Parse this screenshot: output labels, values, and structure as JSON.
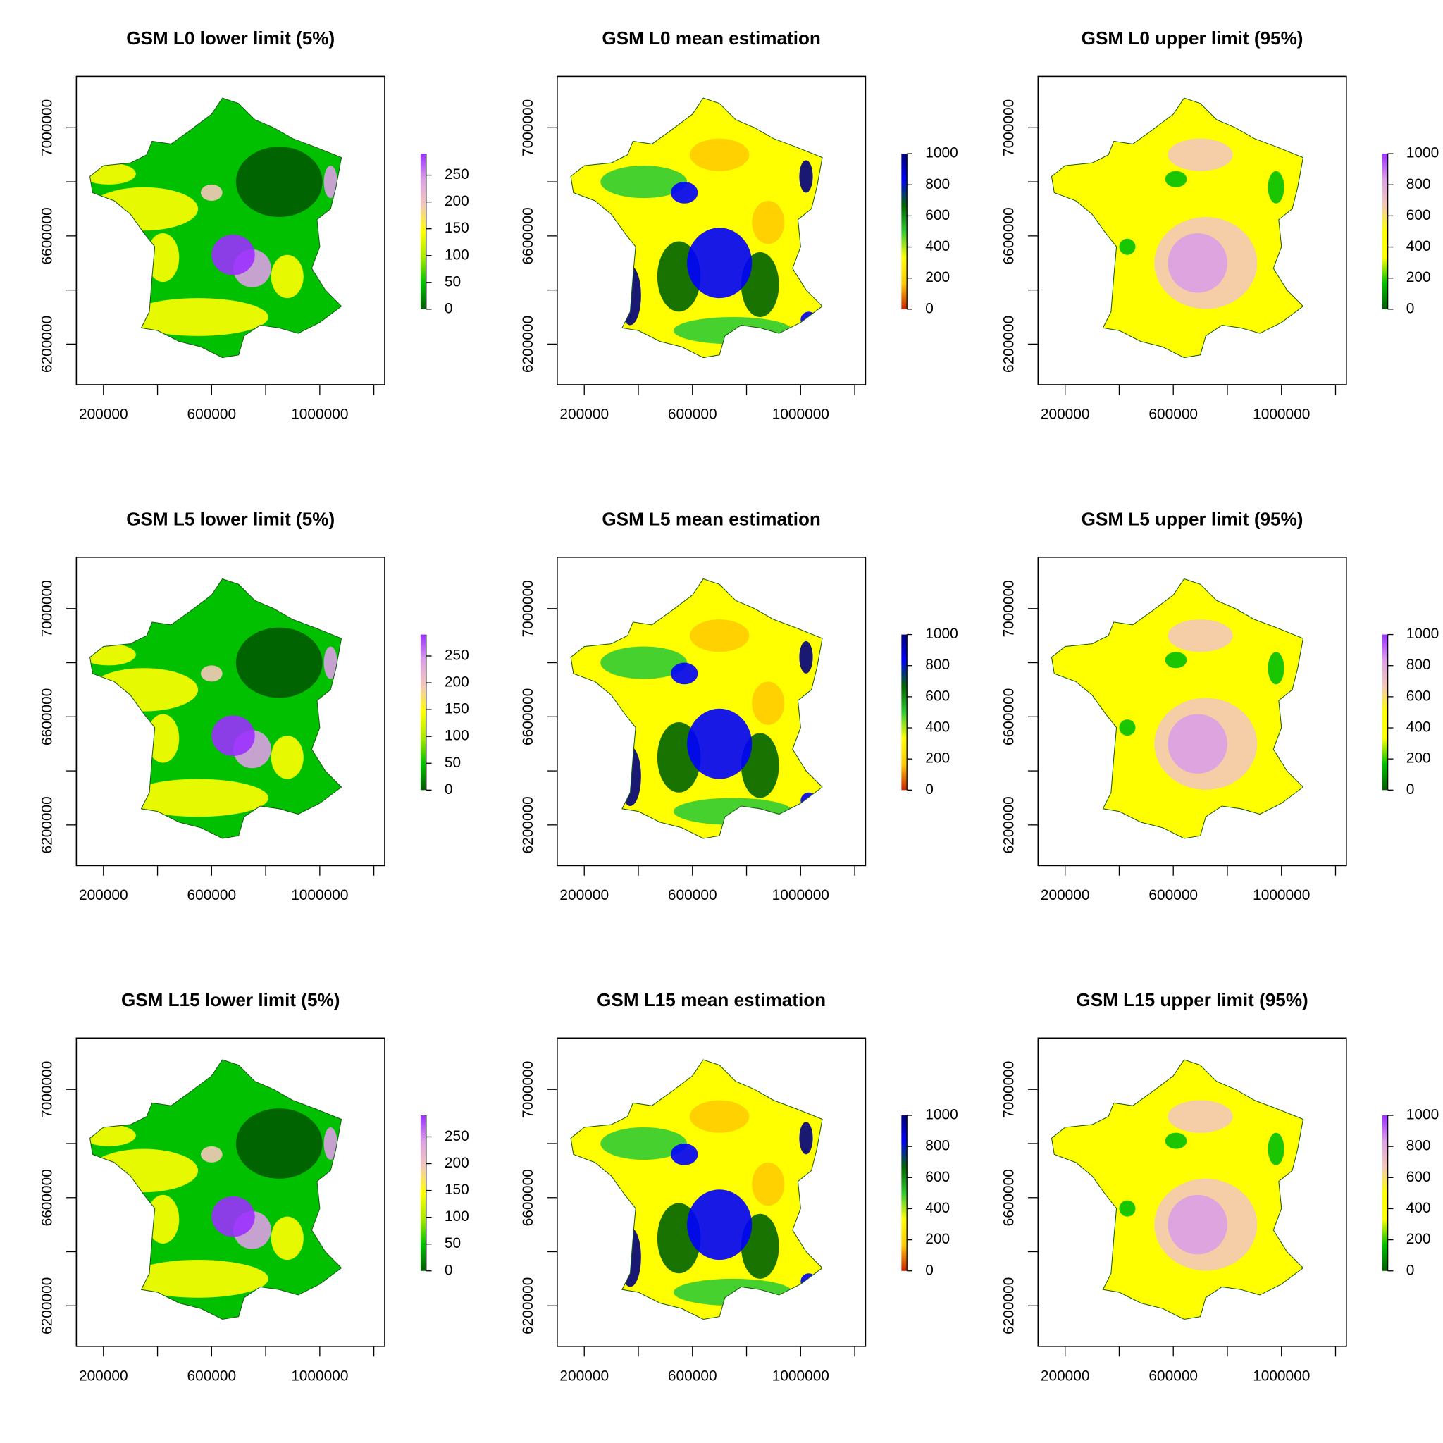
{
  "chart_data": [
    {
      "type": "raster",
      "title": "GSM L0 lower limit (5%)",
      "xlim": [
        100000,
        1240000
      ],
      "ylim": [
        6050000,
        7190000
      ],
      "xticks": [
        200000,
        {
          "value": 400000,
          "label": null
        },
        600000,
        {
          "value": 800000,
          "label": null
        },
        1000000,
        {
          "value": 1200000,
          "label": null
        }
      ],
      "yticks": [
        6200000,
        {
          "value": 6400000,
          "label": null
        },
        6600000,
        {
          "value": 6800000,
          "label": null
        },
        7000000
      ],
      "zlim": [
        0,
        290
      ],
      "zticks": [
        0,
        50,
        100,
        150,
        200,
        250
      ],
      "colors": [
        "#005a00",
        "#00c000",
        "#a8e800",
        "#ffff00",
        "#f4c8b8",
        "#dca0e6",
        "#9b30ff"
      ]
    },
    {
      "type": "raster",
      "title": "GSM L0 mean estimation",
      "xlim": [
        100000,
        1240000
      ],
      "ylim": [
        6050000,
        7190000
      ],
      "xticks": [
        200000,
        {
          "value": 400000,
          "label": null
        },
        600000,
        {
          "value": 800000,
          "label": null
        },
        1000000,
        {
          "value": 1200000,
          "label": null
        }
      ],
      "yticks": [
        6200000,
        {
          "value": 6400000,
          "label": null
        },
        6600000,
        {
          "value": 6800000,
          "label": null
        },
        7000000
      ],
      "zlim": [
        0,
        1000
      ],
      "zticks": [
        0,
        200,
        400,
        600,
        800,
        1000
      ],
      "colors": [
        "#cc2200",
        "#ffcc00",
        "#ffff00",
        "#33cc33",
        "#006400",
        "#0000ff",
        "#000080"
      ]
    },
    {
      "type": "raster",
      "title": "GSM L0 upper limit (95%)",
      "xlim": [
        100000,
        1240000
      ],
      "ylim": [
        6050000,
        7190000
      ],
      "xticks": [
        200000,
        {
          "value": 400000,
          "label": null
        },
        600000,
        {
          "value": 800000,
          "label": null
        },
        1000000,
        {
          "value": 1200000,
          "label": null
        }
      ],
      "yticks": [
        6200000,
        {
          "value": 6400000,
          "label": null
        },
        6600000,
        {
          "value": 6800000,
          "label": null
        },
        7000000
      ],
      "zlim": [
        0,
        1000
      ],
      "zticks": [
        0,
        200,
        400,
        600,
        800,
        1000
      ],
      "colors": [
        "#005a00",
        "#00c000",
        "#ffff00",
        "#ffff00",
        "#f4c8b8",
        "#dca0e6",
        "#9b30ff"
      ]
    },
    {
      "type": "raster",
      "title": "GSM L5 lower limit (5%)",
      "xlim": [
        100000,
        1240000
      ],
      "ylim": [
        6050000,
        7190000
      ],
      "xticks": [
        200000,
        {
          "value": 400000,
          "label": null
        },
        600000,
        {
          "value": 800000,
          "label": null
        },
        1000000,
        {
          "value": 1200000,
          "label": null
        }
      ],
      "yticks": [
        6200000,
        {
          "value": 6400000,
          "label": null
        },
        6600000,
        {
          "value": 6800000,
          "label": null
        },
        7000000
      ],
      "zlim": [
        0,
        290
      ],
      "zticks": [
        0,
        50,
        100,
        150,
        200,
        250
      ],
      "colors": [
        "#005a00",
        "#00c000",
        "#a8e800",
        "#ffff00",
        "#f4c8b8",
        "#dca0e6",
        "#9b30ff"
      ]
    },
    {
      "type": "raster",
      "title": "GSM L5 mean estimation",
      "xlim": [
        100000,
        1240000
      ],
      "ylim": [
        6050000,
        7190000
      ],
      "xticks": [
        200000,
        {
          "value": 400000,
          "label": null
        },
        600000,
        {
          "value": 800000,
          "label": null
        },
        1000000,
        {
          "value": 1200000,
          "label": null
        }
      ],
      "yticks": [
        6200000,
        {
          "value": 6400000,
          "label": null
        },
        6600000,
        {
          "value": 6800000,
          "label": null
        },
        7000000
      ],
      "zlim": [
        0,
        1000
      ],
      "zticks": [
        0,
        200,
        400,
        600,
        800,
        1000
      ],
      "colors": [
        "#cc2200",
        "#ffcc00",
        "#ffff00",
        "#33cc33",
        "#006400",
        "#0000ff",
        "#000080"
      ]
    },
    {
      "type": "raster",
      "title": "GSM L5 upper limit (95%)",
      "xlim": [
        100000,
        1240000
      ],
      "ylim": [
        6050000,
        7190000
      ],
      "xticks": [
        200000,
        {
          "value": 400000,
          "label": null
        },
        600000,
        {
          "value": 800000,
          "label": null
        },
        1000000,
        {
          "value": 1200000,
          "label": null
        }
      ],
      "yticks": [
        6200000,
        {
          "value": 6400000,
          "label": null
        },
        6600000,
        {
          "value": 6800000,
          "label": null
        },
        7000000
      ],
      "zlim": [
        0,
        1000
      ],
      "zticks": [
        0,
        200,
        400,
        600,
        800,
        1000
      ],
      "colors": [
        "#005a00",
        "#00c000",
        "#ffff00",
        "#ffff00",
        "#f4c8b8",
        "#dca0e6",
        "#9b30ff"
      ]
    },
    {
      "type": "raster",
      "title": "GSM L15 lower limit (5%)",
      "xlim": [
        100000,
        1240000
      ],
      "ylim": [
        6050000,
        7190000
      ],
      "xticks": [
        200000,
        {
          "value": 400000,
          "label": null
        },
        600000,
        {
          "value": 800000,
          "label": null
        },
        1000000,
        {
          "value": 1200000,
          "label": null
        }
      ],
      "yticks": [
        6200000,
        {
          "value": 6400000,
          "label": null
        },
        6600000,
        {
          "value": 6800000,
          "label": null
        },
        7000000
      ],
      "zlim": [
        0,
        290
      ],
      "zticks": [
        0,
        50,
        100,
        150,
        200,
        250
      ],
      "colors": [
        "#005a00",
        "#00c000",
        "#a8e800",
        "#ffff00",
        "#f4c8b8",
        "#dca0e6",
        "#9b30ff"
      ]
    },
    {
      "type": "raster",
      "title": "GSM L15 mean estimation",
      "xlim": [
        100000,
        1240000
      ],
      "ylim": [
        6050000,
        7190000
      ],
      "xticks": [
        200000,
        {
          "value": 400000,
          "label": null
        },
        600000,
        {
          "value": 800000,
          "label": null
        },
        1000000,
        {
          "value": 1200000,
          "label": null
        }
      ],
      "yticks": [
        6200000,
        {
          "value": 6400000,
          "label": null
        },
        6600000,
        {
          "value": 6800000,
          "label": null
        },
        7000000
      ],
      "zlim": [
        0,
        1000
      ],
      "zticks": [
        0,
        200,
        400,
        600,
        800,
        1000
      ],
      "colors": [
        "#cc2200",
        "#ffcc00",
        "#ffff00",
        "#33cc33",
        "#006400",
        "#0000ff",
        "#000080"
      ]
    },
    {
      "type": "raster",
      "title": "GSM L15 upper limit (95%)",
      "xlim": [
        100000,
        1240000
      ],
      "ylim": [
        6050000,
        7190000
      ],
      "xticks": [
        200000,
        {
          "value": 400000,
          "label": null
        },
        600000,
        {
          "value": 800000,
          "label": null
        },
        1000000,
        {
          "value": 1200000,
          "label": null
        }
      ],
      "yticks": [
        6200000,
        {
          "value": 6400000,
          "label": null
        },
        6600000,
        {
          "value": 6800000,
          "label": null
        },
        7000000
      ],
      "zlim": [
        0,
        1000
      ],
      "zticks": [
        0,
        200,
        400,
        600,
        800,
        1000
      ],
      "colors": [
        "#005a00",
        "#00c000",
        "#ffff00",
        "#ffff00",
        "#f4c8b8",
        "#dca0e6",
        "#9b30ff"
      ]
    }
  ]
}
